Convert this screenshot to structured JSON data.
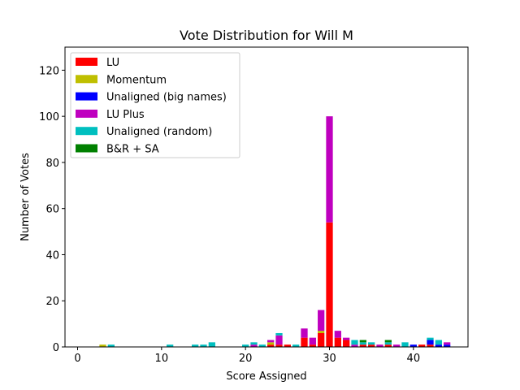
{
  "chart_data": {
    "type": "bar",
    "stacked": true,
    "title": "Vote Distribution for Will M",
    "xlabel": "Score Assigned",
    "ylabel": "Number of Votes",
    "xlim": [
      -1.5,
      46.5
    ],
    "ylim": [
      0,
      130
    ],
    "xticks": [
      0,
      10,
      20,
      30,
      40
    ],
    "yticks": [
      0,
      20,
      40,
      60,
      80,
      100,
      120
    ],
    "grid": false,
    "legend_position": "top-left",
    "series": [
      {
        "name": "LU",
        "color": "#ff0000",
        "points": [
          [
            23,
            1
          ],
          [
            24,
            1
          ],
          [
            25,
            1
          ],
          [
            27,
            4
          ],
          [
            28,
            1
          ],
          [
            29,
            6
          ],
          [
            30,
            54
          ],
          [
            31,
            4
          ],
          [
            32,
            3
          ],
          [
            34,
            1
          ],
          [
            35,
            1
          ],
          [
            37,
            1
          ],
          [
            41,
            1
          ],
          [
            42,
            1
          ]
        ]
      },
      {
        "name": "Momentum",
        "color": "#bfbf00",
        "points": [
          [
            3,
            1
          ],
          [
            23,
            1
          ],
          [
            29,
            1
          ]
        ]
      },
      {
        "name": "Unaligned (big names)",
        "color": "#0000ff",
        "points": [
          [
            40,
            1
          ],
          [
            42,
            2
          ],
          [
            43,
            1
          ],
          [
            44,
            1
          ]
        ]
      },
      {
        "name": "LU Plus",
        "color": "#bf00bf",
        "points": [
          [
            21,
            1
          ],
          [
            23,
            1
          ],
          [
            24,
            4
          ],
          [
            27,
            4
          ],
          [
            28,
            3
          ],
          [
            29,
            9
          ],
          [
            30,
            46
          ],
          [
            31,
            3
          ],
          [
            32,
            1
          ],
          [
            33,
            1
          ],
          [
            36,
            1
          ],
          [
            38,
            1
          ],
          [
            44,
            1
          ]
        ]
      },
      {
        "name": "Unaligned (random)",
        "color": "#00bfbf",
        "points": [
          [
            4,
            1
          ],
          [
            11,
            1
          ],
          [
            14,
            1
          ],
          [
            15,
            1
          ],
          [
            16,
            2
          ],
          [
            20,
            1
          ],
          [
            21,
            1
          ],
          [
            22,
            1
          ],
          [
            24,
            1
          ],
          [
            26,
            1
          ],
          [
            33,
            2
          ],
          [
            34,
            1
          ],
          [
            35,
            1
          ],
          [
            37,
            1
          ],
          [
            39,
            2
          ],
          [
            42,
            1
          ],
          [
            43,
            2
          ]
        ]
      },
      {
        "name": "B&R + SA",
        "color": "#008000",
        "points": [
          [
            34,
            1
          ],
          [
            37,
            1
          ]
        ]
      }
    ]
  }
}
